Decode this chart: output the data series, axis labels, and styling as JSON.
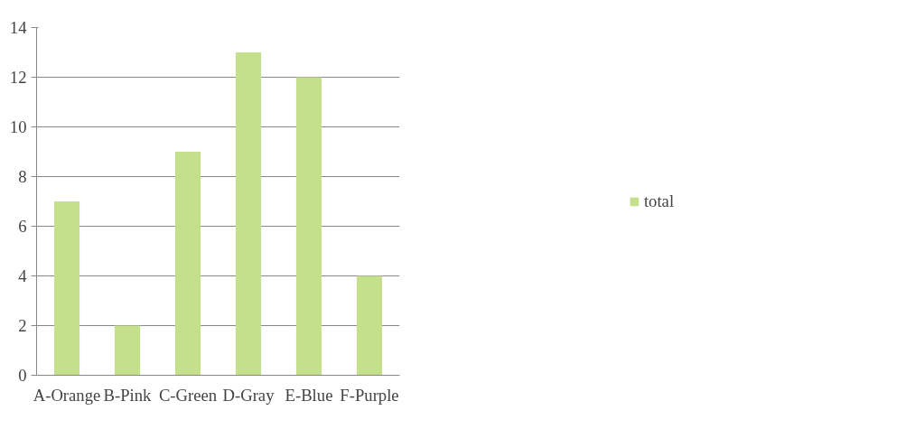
{
  "chart_data": {
    "type": "bar",
    "categories": [
      "A-Orange",
      "B-Pink",
      "C-Green",
      "D-Gray",
      "E-Blue",
      "F-Purple"
    ],
    "series": [
      {
        "name": "total",
        "color": "#c5e08a",
        "values": [
          7,
          2,
          9,
          13,
          12,
          4
        ]
      }
    ],
    "ylim": [
      0,
      14
    ],
    "yticks": [
      0,
      2,
      4,
      6,
      8,
      10,
      12,
      14
    ],
    "grid": "y",
    "legend": "right"
  }
}
